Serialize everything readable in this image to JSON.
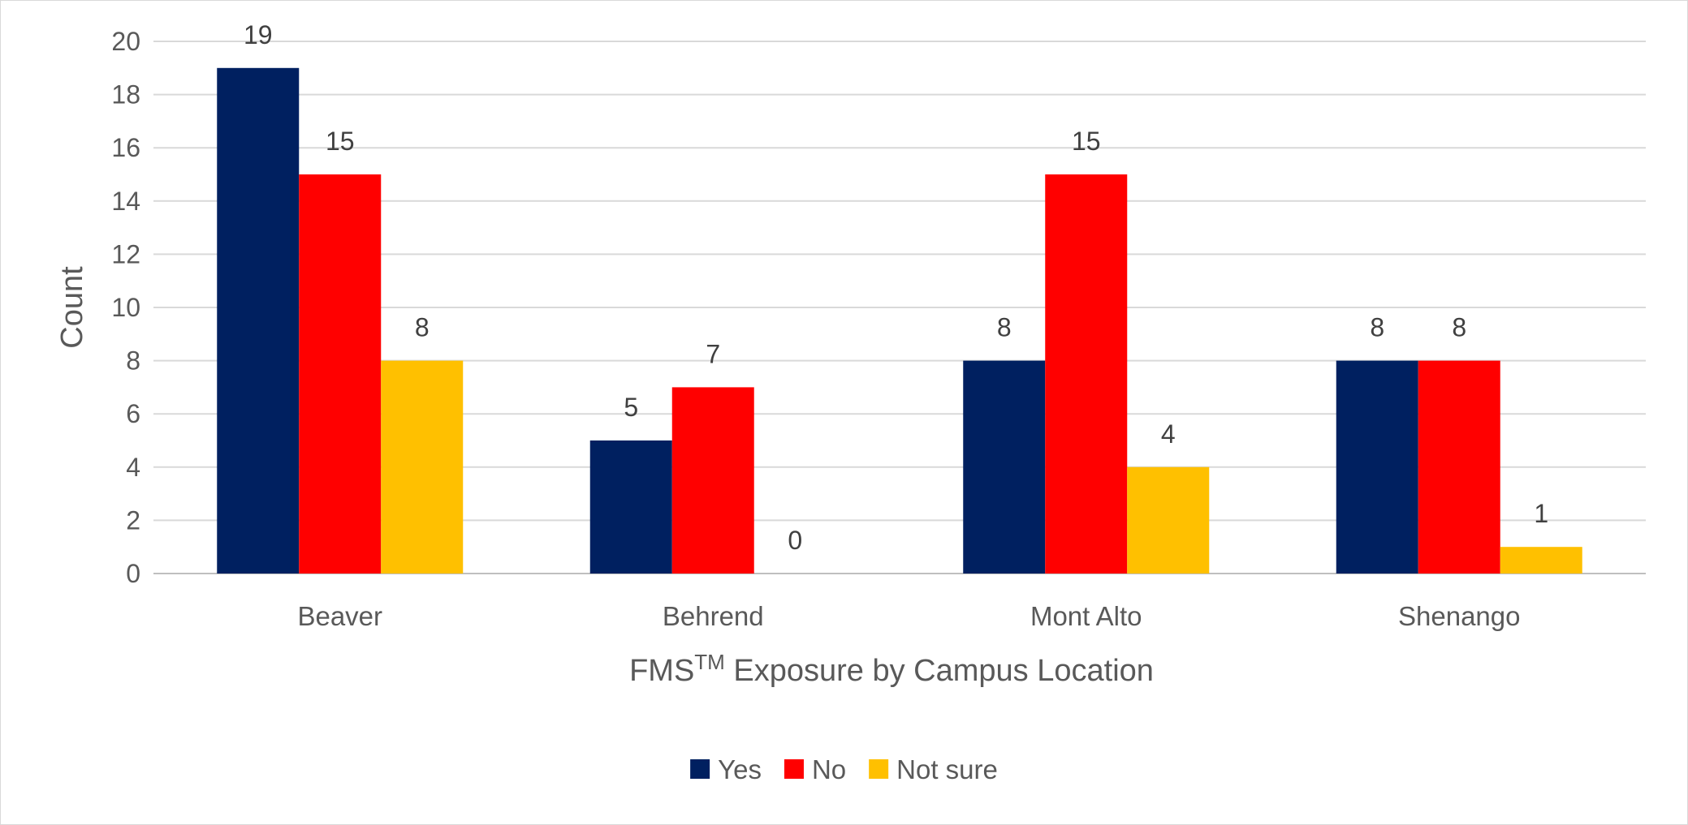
{
  "chart_data": {
    "type": "bar",
    "categories": [
      "Beaver",
      "Behrend",
      "Mont Alto",
      "Shenango"
    ],
    "series": [
      {
        "name": "Yes",
        "values": [
          19,
          5,
          8,
          8
        ],
        "color": "#002060"
      },
      {
        "name": "No",
        "values": [
          15,
          7,
          15,
          8
        ],
        "color": "#ff0000"
      },
      {
        "name": "Not sure",
        "values": [
          8,
          0,
          4,
          1
        ],
        "color": "#ffc000"
      }
    ],
    "title": "",
    "xlabel": {
      "main": "FMS",
      "superscript": "TM",
      "rest": " Exposure by Campus Location"
    },
    "ylabel": "Count",
    "ylim": [
      0,
      20
    ],
    "yticks": [
      0,
      2,
      4,
      6,
      8,
      10,
      12,
      14,
      16,
      18,
      20
    ],
    "grid": true,
    "legend_position": "bottom"
  }
}
